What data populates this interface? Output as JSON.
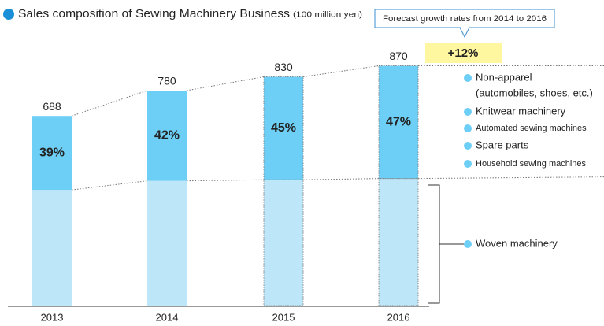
{
  "chart_data": {
    "type": "stacked-share-bar",
    "title": "Sales composition of Sewing Machinery Business",
    "subtitle": "(100 million yen)",
    "categories": [
      "2013",
      "2014",
      "2015",
      "2016"
    ],
    "values": [
      688,
      780,
      830,
      870
    ],
    "share": {
      "values": [
        39,
        42,
        45,
        47
      ],
      "value_labels": [
        "39%",
        "42%",
        "45%",
        "47%"
      ],
      "color": "#6dcff6"
    },
    "base_color": "#bde6f8",
    "forecast": [
      false,
      false,
      true,
      true
    ],
    "annotation": "Forecast growth rates from 2014 to 2016",
    "growth_label": "+12%",
    "legend": [
      [
        "Non-apparel",
        "(automobiles, shoes, etc.)"
      ],
      [
        "Knitwear machinery"
      ],
      [
        "Automated sewing machines"
      ],
      [
        "Spare parts"
      ],
      [
        "Household sewing machines"
      ]
    ],
    "base_legend": "Woven machinery"
  }
}
